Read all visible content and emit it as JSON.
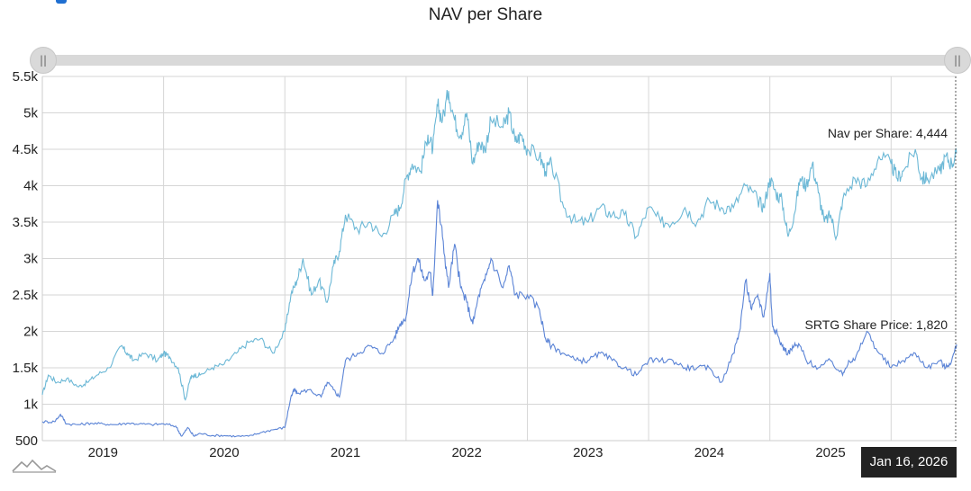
{
  "chart_data": {
    "type": "line",
    "title": "NAV per Share",
    "xlabel": "",
    "ylabel": "",
    "xlim": [
      2018.5,
      2026.04
    ],
    "ylim": [
      500,
      5500
    ],
    "yticks": [
      500,
      1000,
      1500,
      2000,
      2500,
      3000,
      3500,
      4000,
      4500,
      5000,
      5500
    ],
    "ytick_labels": [
      "500",
      "1k",
      "1.5k",
      "2k",
      "2.5k",
      "3k",
      "3.5k",
      "4k",
      "4.5k",
      "5k",
      "5.5k"
    ],
    "xtick_labels": [
      "2019",
      "2020",
      "2021",
      "2022",
      "2023",
      "2024",
      "2025"
    ],
    "grid": true,
    "tooltip_date": "Jan 16, 2026",
    "series": [
      {
        "name": "Nav per Share",
        "label": "Nav per Share: 4,444",
        "color": "#6cb8d6",
        "x": [
          2018.5,
          2018.55,
          2018.62,
          2018.7,
          2018.8,
          2018.87,
          2018.95,
          2019.05,
          2019.15,
          2019.2,
          2019.25,
          2019.35,
          2019.45,
          2019.5,
          2019.55,
          2019.62,
          2019.68,
          2019.72,
          2019.75,
          2019.8,
          2019.9,
          2020.0,
          2020.1,
          2020.2,
          2020.3,
          2020.4,
          2020.5,
          2020.55,
          2020.6,
          2020.65,
          2020.72,
          2020.78,
          2020.85,
          2020.9,
          2020.95,
          2021.0,
          2021.1,
          2021.2,
          2021.3,
          2021.4,
          2021.45,
          2021.5,
          2021.55,
          2021.62,
          2021.68,
          2021.72,
          2021.76,
          2021.8,
          2021.85,
          2021.9,
          2021.95,
          2022.0,
          2022.05,
          2022.1,
          2022.15,
          2022.2,
          2022.3,
          2022.35,
          2022.4,
          2022.45,
          2022.5,
          2022.6,
          2022.65,
          2022.7,
          2022.8,
          2022.9,
          2023.0,
          2023.1,
          2023.2,
          2023.3,
          2023.4,
          2023.5,
          2023.6,
          2023.7,
          2023.8,
          2023.9,
          2024.0,
          2024.1,
          2024.2,
          2024.3,
          2024.4,
          2024.45,
          2024.5,
          2024.55,
          2024.6,
          2024.65,
          2024.7,
          2024.75,
          2024.8,
          2024.85,
          2024.9,
          2024.95,
          2025.0,
          2025.05,
          2025.1,
          2025.2,
          2025.3,
          2025.4,
          2025.5,
          2025.55,
          2025.6,
          2025.7,
          2025.75,
          2025.8,
          2025.9,
          2025.95,
          2026.0,
          2026.04
        ],
        "values": [
          1130,
          1400,
          1300,
          1350,
          1240,
          1300,
          1400,
          1500,
          1800,
          1700,
          1600,
          1700,
          1600,
          1700,
          1650,
          1500,
          1060,
          1350,
          1400,
          1400,
          1500,
          1550,
          1700,
          1850,
          1900,
          1700,
          2000,
          2500,
          2700,
          3000,
          2500,
          2700,
          2400,
          2900,
          3100,
          3600,
          3400,
          3500,
          3300,
          3600,
          3700,
          4100,
          4300,
          4200,
          4700,
          4500,
          5100,
          4900,
          5300,
          4900,
          4700,
          5000,
          4300,
          4600,
          4500,
          4900,
          4800,
          5000,
          4600,
          4700,
          4500,
          4400,
          4200,
          4300,
          3700,
          3500,
          3500,
          3700,
          3600,
          3600,
          3300,
          3700,
          3500,
          3500,
          3700,
          3500,
          3800,
          3700,
          3700,
          4000,
          3800,
          3700,
          4100,
          3900,
          3800,
          3300,
          3600,
          4100,
          4000,
          4300,
          3900,
          3500,
          3600,
          3300,
          3800,
          4100,
          4000,
          4400,
          4300,
          4100,
          4200,
          4500,
          4100,
          4100,
          4200,
          4400,
          4300,
          4444
        ]
      },
      {
        "name": "SRTG Share Price",
        "label": "SRTG Share Price: 1,820",
        "color": "#5b84d6",
        "x": [
          2018.5,
          2018.6,
          2018.65,
          2018.7,
          2018.8,
          2018.9,
          2019.0,
          2019.1,
          2019.2,
          2019.3,
          2019.4,
          2019.5,
          2019.6,
          2019.65,
          2019.7,
          2019.75,
          2019.8,
          2019.9,
          2020.0,
          2020.1,
          2020.2,
          2020.3,
          2020.4,
          2020.5,
          2020.55,
          2020.58,
          2020.6,
          2020.7,
          2020.8,
          2020.85,
          2020.9,
          2020.95,
          2021.0,
          2021.1,
          2021.2,
          2021.3,
          2021.4,
          2021.45,
          2021.5,
          2021.55,
          2021.6,
          2021.65,
          2021.7,
          2021.72,
          2021.76,
          2021.8,
          2021.85,
          2021.9,
          2021.95,
          2022.0,
          2022.05,
          2022.1,
          2022.15,
          2022.2,
          2022.3,
          2022.35,
          2022.4,
          2022.5,
          2022.6,
          2022.65,
          2022.7,
          2022.8,
          2022.9,
          2023.0,
          2023.1,
          2023.2,
          2023.3,
          2023.4,
          2023.5,
          2023.6,
          2023.7,
          2023.8,
          2023.9,
          2024.0,
          2024.1,
          2024.2,
          2024.25,
          2024.3,
          2024.35,
          2024.4,
          2024.45,
          2024.5,
          2024.52,
          2024.55,
          2024.6,
          2024.65,
          2024.7,
          2024.75,
          2024.8,
          2024.9,
          2025.0,
          2025.1,
          2025.15,
          2025.2,
          2025.3,
          2025.4,
          2025.5,
          2025.6,
          2025.7,
          2025.8,
          2025.9,
          2025.95,
          2026.0,
          2026.04
        ],
        "values": [
          760,
          760,
          860,
          730,
          720,
          740,
          730,
          720,
          740,
          730,
          720,
          730,
          700,
          560,
          680,
          560,
          600,
          570,
          570,
          560,
          560,
          610,
          650,
          680,
          1100,
          1200,
          1150,
          1200,
          1100,
          1300,
          1200,
          1100,
          1600,
          1700,
          1800,
          1700,
          1900,
          2100,
          2200,
          2800,
          3000,
          2700,
          2800,
          2500,
          3800,
          3300,
          2600,
          3200,
          2600,
          2400,
          2100,
          2500,
          2700,
          3000,
          2600,
          2900,
          2500,
          2500,
          2300,
          1900,
          1800,
          1700,
          1600,
          1600,
          1700,
          1600,
          1500,
          1400,
          1600,
          1600,
          1600,
          1500,
          1500,
          1500,
          1300,
          1700,
          2000,
          2700,
          2300,
          2500,
          2200,
          2800,
          2100,
          2000,
          1800,
          1700,
          1800,
          1800,
          1600,
          1500,
          1600,
          1400,
          1600,
          1600,
          2000,
          1700,
          1500,
          1600,
          1700,
          1500,
          1600,
          1500,
          1600,
          1820
        ]
      }
    ]
  }
}
